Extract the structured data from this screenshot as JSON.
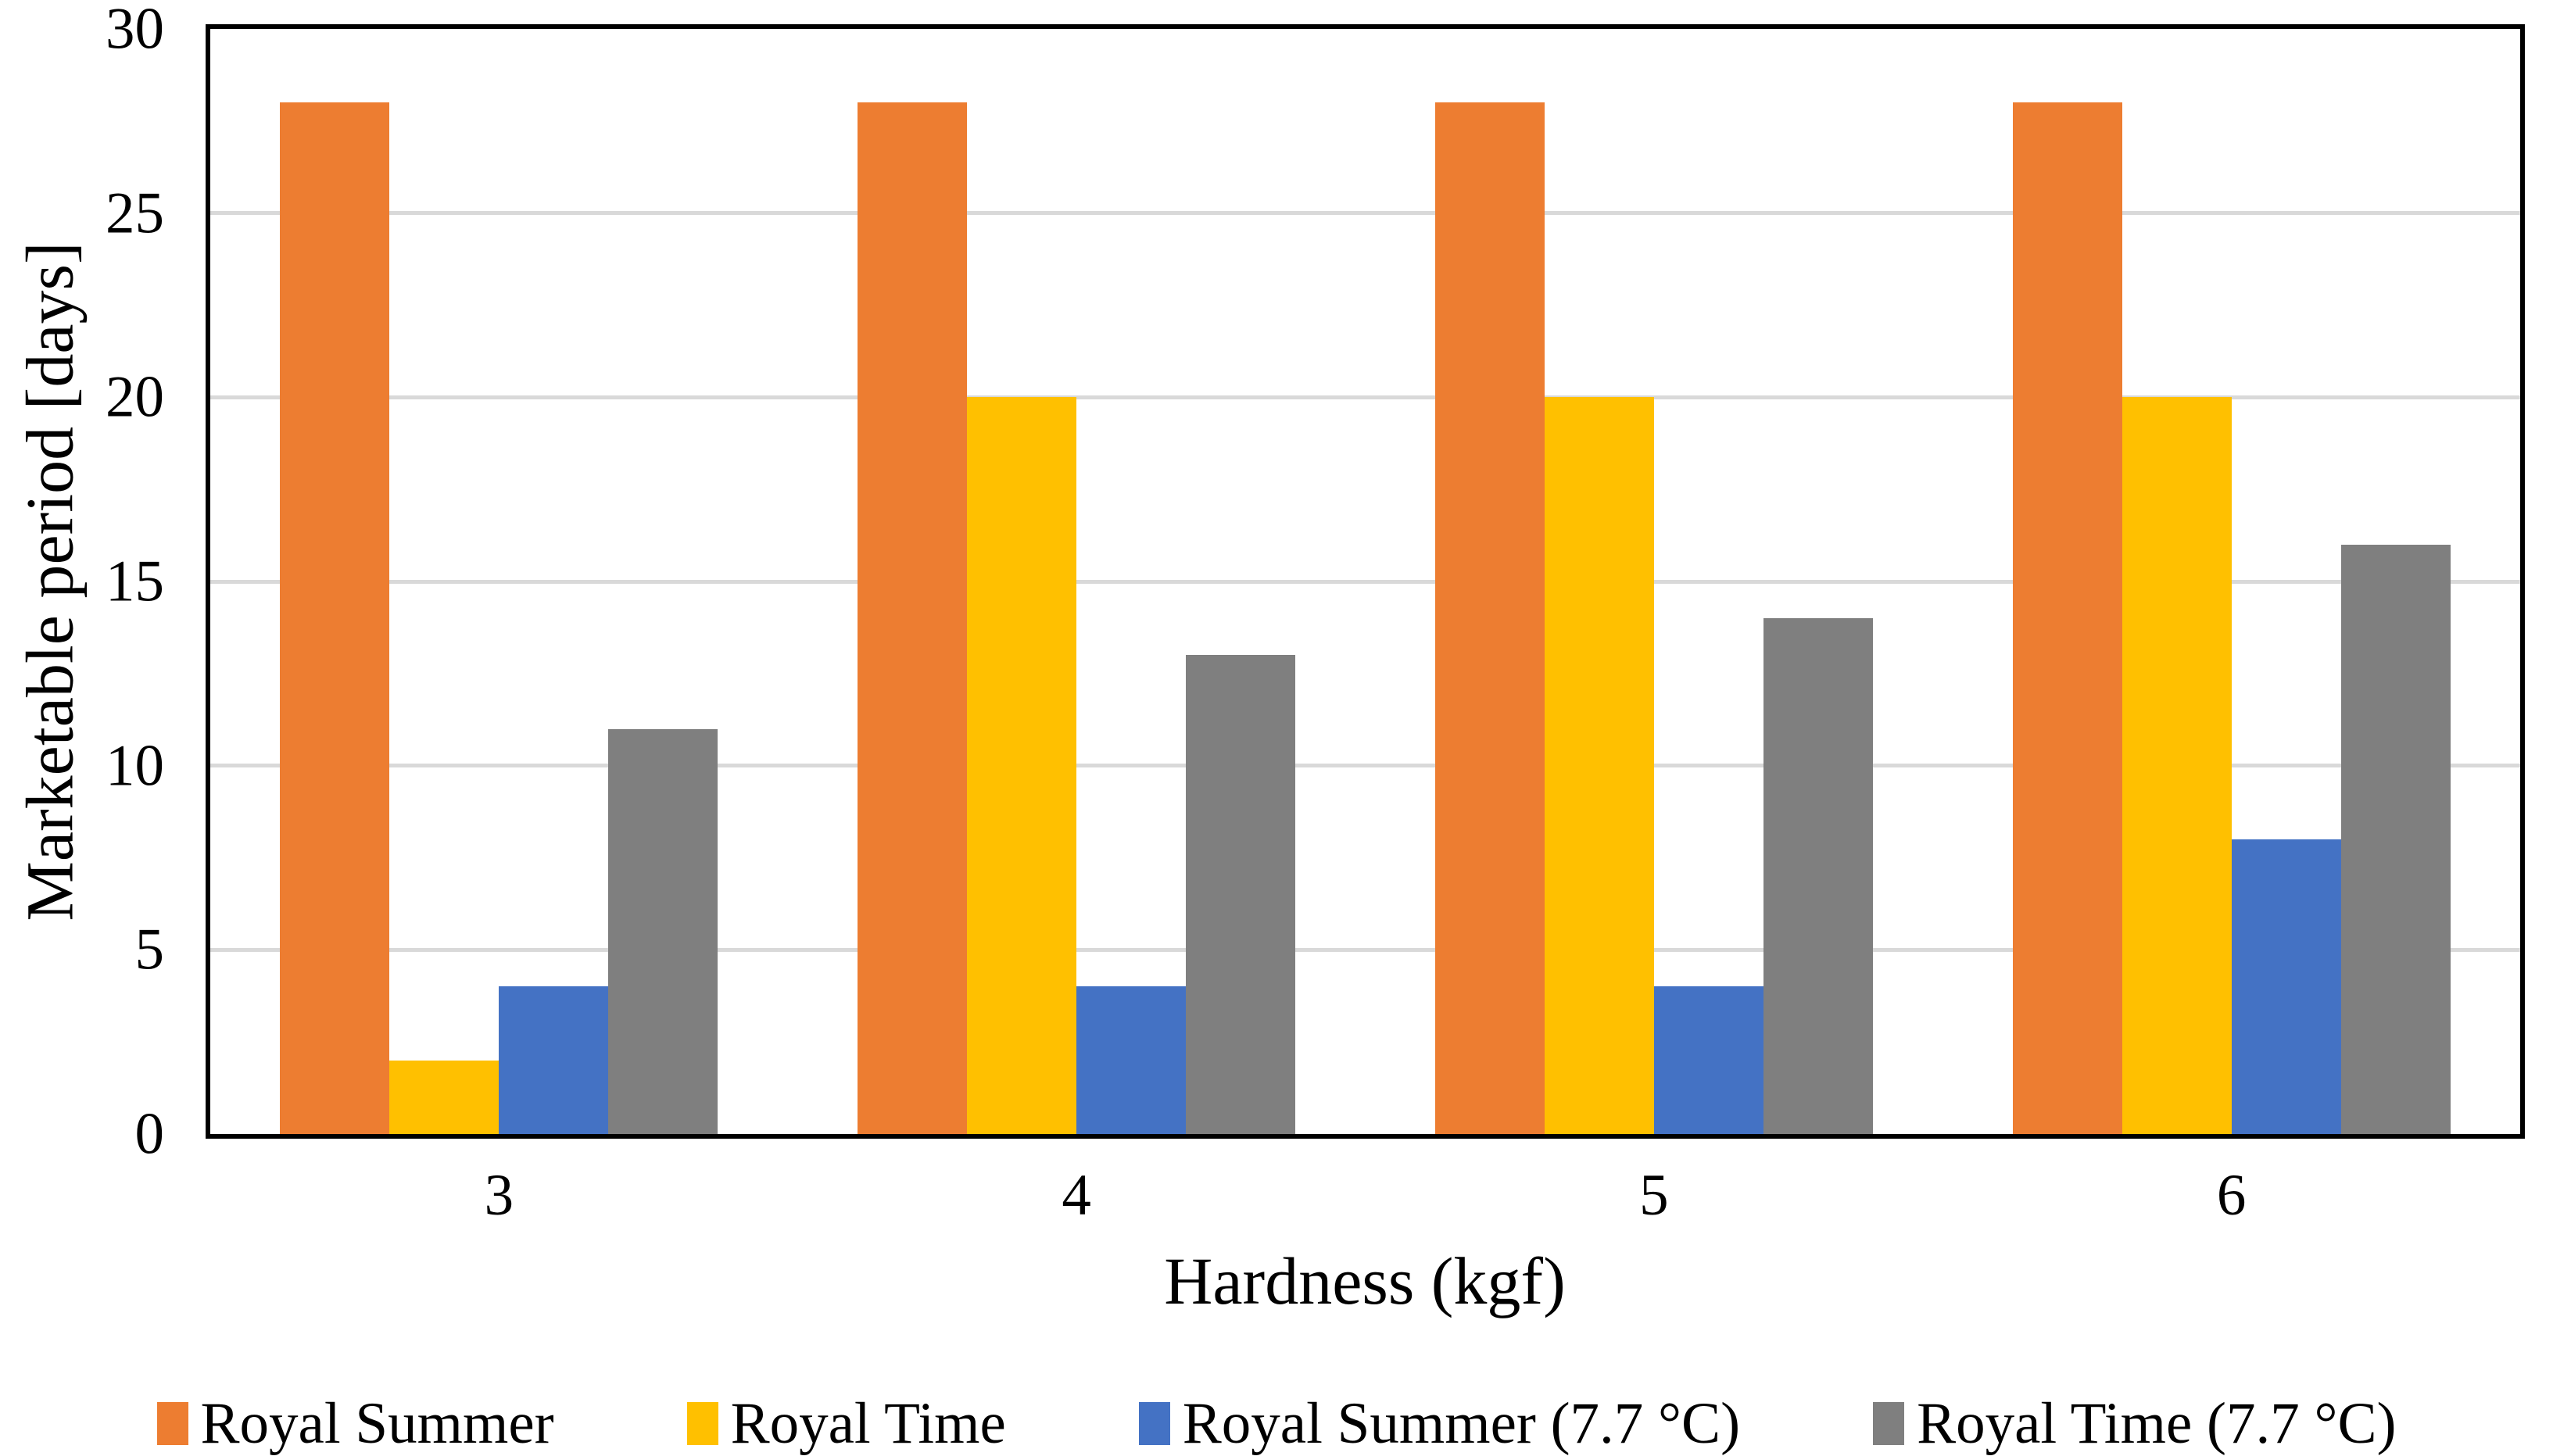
{
  "chart_data": {
    "type": "bar",
    "title": "",
    "categories": [
      "3",
      "4",
      "5",
      "6"
    ],
    "series": [
      {
        "name": "Royal Summer",
        "color": "#ED7D31",
        "values": [
          28,
          28,
          28,
          28
        ]
      },
      {
        "name": "Royal Time",
        "color": "#FFC000",
        "values": [
          2,
          20,
          20,
          20
        ]
      },
      {
        "name": "Royal Summer (7.7 °C)",
        "color": "#4472C4",
        "values": [
          4,
          4,
          4,
          8
        ]
      },
      {
        "name": "Royal Time (7.7 °C)",
        "color": "#7F7F7F",
        "values": [
          11,
          13,
          14,
          16
        ]
      }
    ],
    "xlabel": "Hardness (kgf)",
    "ylabel": "Marketable period [days]",
    "ylim": [
      0,
      30
    ],
    "yticks": [
      0,
      5,
      10,
      15,
      20,
      25,
      30
    ],
    "gridlines": [
      5,
      10,
      15,
      20,
      25
    ],
    "grid": "horizontal",
    "legend_position": "bottom",
    "colors": {
      "gridline": "#D9D9D9",
      "axis_frame": "#000000",
      "background": "#FFFFFF",
      "text": "#000000"
    }
  }
}
